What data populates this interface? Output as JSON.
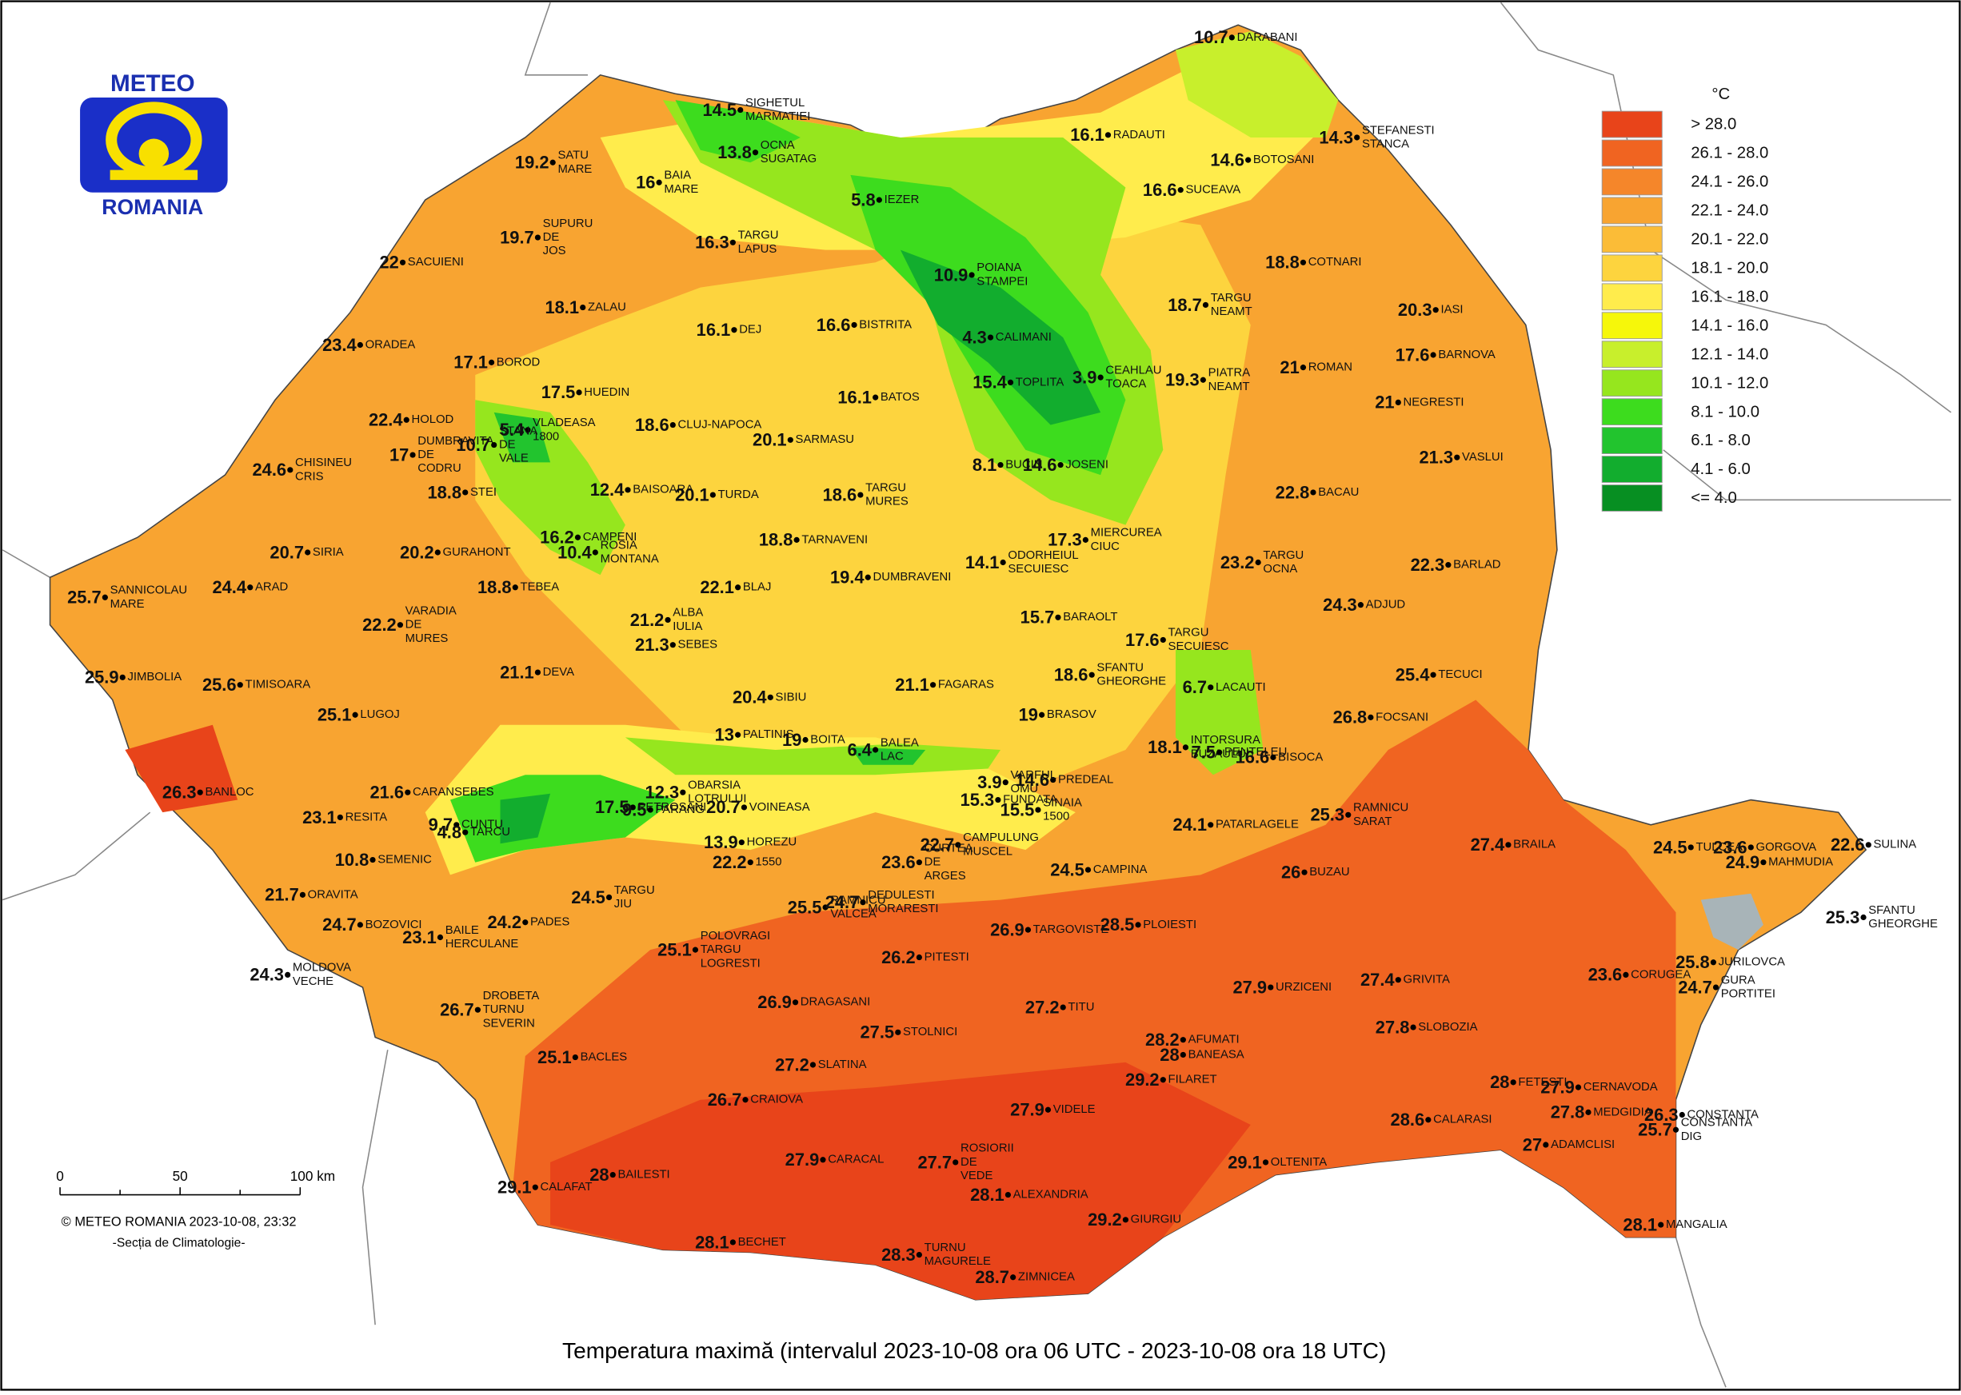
{
  "logo": {
    "top": "METEO",
    "bottom": "ROMANIA"
  },
  "legend": {
    "unit": "°C",
    "items": [
      {
        "label": "> 28.0",
        "color": "#e8441a"
      },
      {
        "label": "26.1 - 28.0",
        "color": "#f06421"
      },
      {
        "label": "24.1 - 26.0",
        "color": "#f5862a"
      },
      {
        "label": "22.1 - 24.0",
        "color": "#f8a431"
      },
      {
        "label": "20.1 - 22.0",
        "color": "#fbbc37"
      },
      {
        "label": "18.1 - 20.0",
        "color": "#fdd43e"
      },
      {
        "label": "16.1 - 18.0",
        "color": "#ffec4c"
      },
      {
        "label": "14.1 - 16.0",
        "color": "#f6f70a"
      },
      {
        "label": "12.1 - 14.0",
        "color": "#c8ef2c"
      },
      {
        "label": "10.1 - 12.0",
        "color": "#96e61e"
      },
      {
        "label": "8.1 - 10.0",
        "color": "#3ddc1e"
      },
      {
        "label": "6.1 - 8.0",
        "color": "#22c42e"
      },
      {
        "label": "4.1 - 6.0",
        "color": "#12ad2e"
      },
      {
        "label": "<= 4.0",
        "color": "#078f22"
      }
    ]
  },
  "scale_bar": {
    "ticks": [
      "0",
      "50",
      "100 km"
    ]
  },
  "credit": "© METEO ROMANIA 2023-10-08, 23:32",
  "department": "-Secția de Climatologie-",
  "title": "Temperatura maximă (intervalul 2023-10-08 ora 06 UTC - 2023-10-08 ora 18 UTC)",
  "stations": [
    {
      "value": 10.7,
      "name": [
        "DARABANI"
      ]
    },
    {
      "value": 14.5,
      "name": [
        "SIGHETUL",
        "MARMATIEI"
      ]
    },
    {
      "value": 13.8,
      "name": [
        "OCNA",
        "SUGATAG"
      ]
    },
    {
      "value": 19.2,
      "name": [
        "SATU",
        "MARE"
      ]
    },
    {
      "value": 16,
      "name": [
        "BAIA",
        "MARE"
      ]
    },
    {
      "value": 16.1,
      "name": [
        "RADAUTI"
      ]
    },
    {
      "value": 14.6,
      "name": [
        "BOTOSANI"
      ]
    },
    {
      "value": 14.3,
      "name": [
        "STEFANESTI",
        "STANCA"
      ]
    },
    {
      "value": 5.8,
      "name": [
        "IEZER"
      ]
    },
    {
      "value": 16.6,
      "name": [
        "SUCEAVA"
      ]
    },
    {
      "value": 16.3,
      "name": [
        "TARGU",
        "LAPUS"
      ]
    },
    {
      "value": 19.7,
      "name": [
        "SUPURU",
        "DE",
        "JOS"
      ]
    },
    {
      "value": 22,
      "name": [
        "SACUIENI"
      ]
    },
    {
      "value": 10.9,
      "name": [
        "POIANA",
        "STAMPEI"
      ]
    },
    {
      "value": 18.8,
      "name": [
        "COTNARI"
      ]
    },
    {
      "value": 18.1,
      "name": [
        "ZALAU"
      ]
    },
    {
      "value": 18.7,
      "name": [
        "TARGU",
        "NEAMT"
      ]
    },
    {
      "value": 20.3,
      "name": [
        "IASI"
      ]
    },
    {
      "value": 16.1,
      "name": [
        "DEJ"
      ]
    },
    {
      "value": 16.6,
      "name": [
        "BISTRITA"
      ]
    },
    {
      "value": 4.3,
      "name": [
        "CALIMANI"
      ]
    },
    {
      "value": 23.4,
      "name": [
        "ORADEA"
      ]
    },
    {
      "value": 17.1,
      "name": [
        "BOROD"
      ]
    },
    {
      "value": 3.9,
      "name": [
        "CEAHLAU",
        "TOACA"
      ]
    },
    {
      "value": 19.3,
      "name": [
        "PIATRA",
        "NEAMT"
      ]
    },
    {
      "value": 21,
      "name": [
        "ROMAN"
      ]
    },
    {
      "value": 17.6,
      "name": [
        "BARNOVA"
      ]
    },
    {
      "value": 17.5,
      "name": [
        "HUEDIN"
      ]
    },
    {
      "value": 5.4,
      "name": [
        "VLADEASA",
        "1800"
      ]
    },
    {
      "value": 15.4,
      "name": [
        "TOPLITA"
      ]
    },
    {
      "value": 16.1,
      "name": [
        "BATOS"
      ]
    },
    {
      "value": 21,
      "name": [
        "NEGRESTI"
      ]
    },
    {
      "value": 22.4,
      "name": [
        "HOLOD"
      ]
    },
    {
      "value": 18.6,
      "name": [
        "CLUJ-NAPOCA"
      ]
    },
    {
      "value": 17,
      "name": [
        "DUMBRAVITA",
        "DE",
        "CODRU"
      ]
    },
    {
      "value": 10.7,
      "name": [
        "STANA",
        "DE",
        "VALE"
      ]
    },
    {
      "value": 20.1,
      "name": [
        "SARMASU"
      ]
    },
    {
      "value": 8.1,
      "name": [
        "BUCIN"
      ]
    },
    {
      "value": 14.6,
      "name": [
        "JOSENI"
      ]
    },
    {
      "value": 21.3,
      "name": [
        "VASLUI"
      ]
    },
    {
      "value": 24.6,
      "name": [
        "CHISINEU",
        "CRIS"
      ]
    },
    {
      "value": 18.8,
      "name": [
        "STEI"
      ]
    },
    {
      "value": 12.4,
      "name": [
        "BAISOARA"
      ]
    },
    {
      "value": 20.1,
      "name": [
        "TURDA"
      ]
    },
    {
      "value": 18.6,
      "name": [
        "TARGU",
        "MURES"
      ]
    },
    {
      "value": 22.8,
      "name": [
        "BACAU"
      ]
    },
    {
      "value": 16.2,
      "name": [
        "CAMPENI"
      ]
    },
    {
      "value": 10.4,
      "name": [
        "ROSIA",
        "MONTANA"
      ]
    },
    {
      "value": 20.7,
      "name": [
        "SIRIA"
      ]
    },
    {
      "value": 20.2,
      "name": [
        "GURAHONT"
      ]
    },
    {
      "value": 18.8,
      "name": [
        "TARNAVENI"
      ]
    },
    {
      "value": 14.1,
      "name": [
        "ODORHEIUL",
        "SECUIESC"
      ]
    },
    {
      "value": 17.3,
      "name": [
        "MIERCUREA",
        "CIUC"
      ]
    },
    {
      "value": 23.2,
      "name": [
        "TARGU",
        "OCNA"
      ]
    },
    {
      "value": 22.3,
      "name": [
        "BARLAD"
      ]
    },
    {
      "value": 25.7,
      "name": [
        "SANNICOLAU",
        "MARE"
      ]
    },
    {
      "value": 24.4,
      "name": [
        "ARAD"
      ]
    },
    {
      "value": 18.8,
      "name": [
        "TEBEA"
      ]
    },
    {
      "value": 19.4,
      "name": [
        "DUMBRAVENI"
      ]
    },
    {
      "value": 22.1,
      "name": [
        "BLAJ"
      ]
    },
    {
      "value": 22.2,
      "name": [
        "VARADIA",
        "DE",
        "MURES"
      ]
    },
    {
      "value": 24.3,
      "name": [
        "ADJUD"
      ]
    },
    {
      "value": 21.2,
      "name": [
        "ALBA",
        "IULIA"
      ]
    },
    {
      "value": 15.7,
      "name": [
        "BARAOLT"
      ]
    },
    {
      "value": 17.6,
      "name": [
        "TARGU",
        "SECUIESC"
      ]
    },
    {
      "value": 21.3,
      "name": [
        "SEBES"
      ]
    },
    {
      "value": 18.6,
      "name": [
        "SFANTU",
        "GHEORGHE"
      ]
    },
    {
      "value": 21.1,
      "name": [
        "DEVA"
      ]
    },
    {
      "value": 25.9,
      "name": [
        "JIMBOLIA"
      ]
    },
    {
      "value": 25.6,
      "name": [
        "TIMISOARA"
      ]
    },
    {
      "value": 25.4,
      "name": [
        "TECUCI"
      ]
    },
    {
      "value": 6.7,
      "name": [
        "LACAUTI"
      ]
    },
    {
      "value": 20.4,
      "name": [
        "SIBIU"
      ]
    },
    {
      "value": 21.1,
      "name": [
        "FAGARAS"
      ]
    },
    {
      "value": 19,
      "name": [
        "BRASOV"
      ]
    },
    {
      "value": 26.8,
      "name": [
        "FOCSANI"
      ]
    },
    {
      "value": 25.1,
      "name": [
        "LUGOJ"
      ]
    },
    {
      "value": 13,
      "name": [
        "PALTINIS"
      ]
    },
    {
      "value": 19,
      "name": [
        "BOITA"
      ]
    },
    {
      "value": 6.4,
      "name": [
        "BALEA",
        "LAC"
      ]
    },
    {
      "value": 18.1,
      "name": [
        "INTORSURA",
        "BUZAULUI"
      ]
    },
    {
      "value": 7.5,
      "name": [
        "PENTELEU"
      ]
    },
    {
      "value": 16.6,
      "name": [
        "BISOCA"
      ]
    },
    {
      "value": 26.3,
      "name": [
        "BANLOC"
      ]
    },
    {
      "value": 21.6,
      "name": [
        "CARANSEBES"
      ]
    },
    {
      "value": 14.6,
      "name": [
        "PREDEAL"
      ]
    },
    {
      "value": 3.9,
      "name": [
        "VARFUL",
        "OMU"
      ]
    },
    {
      "value": 12.3,
      "name": [
        "OBARSIA",
        "LOTRULUI"
      ]
    },
    {
      "value": 17.5,
      "name": [
        "PETROSANI"
      ]
    },
    {
      "value": 9.5,
      "name": [
        "PARANG"
      ]
    },
    {
      "value": 20.7,
      "name": [
        "VOINEASA"
      ]
    },
    {
      "value": 15.3,
      "name": [
        "FUNDATA"
      ]
    },
    {
      "value": 15.5,
      "name": [
        "SINAIA",
        "1500"
      ]
    },
    {
      "value": 23.1,
      "name": [
        "RESITA"
      ]
    },
    {
      "value": 9.7,
      "name": [
        "CUNTU"
      ]
    },
    {
      "value": 4.8,
      "name": [
        "TARCU"
      ]
    },
    {
      "value": 24.1,
      "name": [
        "PATARLAGELE"
      ]
    },
    {
      "value": 25.3,
      "name": [
        "RAMNICU",
        "SARAT"
      ]
    },
    {
      "value": 22.7,
      "name": [
        "CAMPULUNG",
        "MUSCEL"
      ]
    },
    {
      "value": 13.9,
      "name": [
        "HOREZU"
      ]
    },
    {
      "value": 22.2,
      "name": [
        "1550"
      ]
    },
    {
      "value": 10.8,
      "name": [
        "SEMENIC"
      ]
    },
    {
      "value": 24.5,
      "name": [
        "CAMPINA"
      ]
    },
    {
      "value": 26,
      "name": [
        "BUZAU"
      ]
    },
    {
      "value": 27.4,
      "name": [
        "BRAILA"
      ]
    },
    {
      "value": 24.5,
      "name": [
        "TULCEA"
      ]
    },
    {
      "value": 23.6,
      "name": [
        "GORGOVA"
      ]
    },
    {
      "value": 22.6,
      "name": [
        "SULINA"
      ]
    },
    {
      "value": 24.9,
      "name": [
        "MAHMUDIA"
      ]
    },
    {
      "value": 21.7,
      "name": [
        "ORAVITA"
      ]
    },
    {
      "value": 24.5,
      "name": [
        "TARGU",
        "JIU"
      ]
    },
    {
      "value": 24.2,
      "name": [
        "PADES"
      ]
    },
    {
      "value": 25.5,
      "name": [
        "RAMNICU",
        "VALCEA"
      ]
    },
    {
      "value": 24.7,
      "name": [
        "DEDULESTI",
        "MORARESTI"
      ]
    },
    {
      "value": 23.6,
      "name": [
        "CURTEA",
        "DE",
        "ARGES"
      ]
    },
    {
      "value": 24.7,
      "name": [
        "BOZOVICI"
      ]
    },
    {
      "value": 23.1,
      "name": [
        "BAILE",
        "HERCULANE"
      ]
    },
    {
      "value": 26.9,
      "name": [
        "TARGOVISTE"
      ]
    },
    {
      "value": 28.5,
      "name": [
        "PLOIESTI"
      ]
    },
    {
      "value": 25.3,
      "name": [
        "SFANTU",
        "GHEORGHE"
      ]
    },
    {
      "value": 25.1,
      "name": [
        "POLOVRAGI",
        "TARGU",
        "LOGRESTI"
      ]
    },
    {
      "value": 26.2,
      "name": [
        "PITESTI"
      ]
    },
    {
      "value": 24.3,
      "name": [
        "MOLDOVA",
        "VECHE"
      ]
    },
    {
      "value": 27.9,
      "name": [
        "URZICENI"
      ]
    },
    {
      "value": 27.4,
      "name": [
        "GRIVITA"
      ]
    },
    {
      "value": 25.8,
      "name": [
        "JURILOVCA"
      ]
    },
    {
      "value": 24.7,
      "name": [
        "GURA",
        "PORTITEI"
      ]
    },
    {
      "value": 23.6,
      "name": [
        "CORUGEA"
      ]
    },
    {
      "value": 26.7,
      "name": [
        "DROBETA",
        "TURNU",
        "SEVERIN"
      ]
    },
    {
      "value": 26.9,
      "name": [
        "DRAGASANI"
      ]
    },
    {
      "value": 27.2,
      "name": [
        "TITU"
      ]
    },
    {
      "value": 27.5,
      "name": [
        "STOLNICI"
      ]
    },
    {
      "value": 27.8,
      "name": [
        "SLOBOZIA"
      ]
    },
    {
      "value": 28.2,
      "name": [
        "AFUMATI"
      ]
    },
    {
      "value": 28,
      "name": [
        "BANEASA"
      ]
    },
    {
      "value": 25.1,
      "name": [
        "BACLES"
      ]
    },
    {
      "value": 27.2,
      "name": [
        "SLATINA"
      ]
    },
    {
      "value": 29.2,
      "name": [
        "FILARET"
      ]
    },
    {
      "value": 28,
      "name": [
        "FETESTI"
      ]
    },
    {
      "value": 27.9,
      "name": [
        "CERNAVODA"
      ]
    },
    {
      "value": 26.7,
      "name": [
        "CRAIOVA"
      ]
    },
    {
      "value": 27.9,
      "name": [
        "VIDELE"
      ]
    },
    {
      "value": 27.8,
      "name": [
        "MEDGIDIA"
      ]
    },
    {
      "value": 26.3,
      "name": [
        "CONSTANTA"
      ]
    },
    {
      "value": 25.7,
      "name": [
        "CONSTANTA",
        "DIG"
      ]
    },
    {
      "value": 28.6,
      "name": [
        "CALARASI"
      ]
    },
    {
      "value": 27,
      "name": [
        "ADAMCLISI"
      ]
    },
    {
      "value": 27.9,
      "name": [
        "CARACAL"
      ]
    },
    {
      "value": 27.7,
      "name": [
        "ROSIORII",
        "DE",
        "VEDE"
      ]
    },
    {
      "value": 29.1,
      "name": [
        "OLTENITA"
      ]
    },
    {
      "value": 29.1,
      "name": [
        "CALAFAT"
      ]
    },
    {
      "value": 28,
      "name": [
        "BAILESTI"
      ]
    },
    {
      "value": 28.1,
      "name": [
        "ALEXANDRIA"
      ]
    },
    {
      "value": 29.2,
      "name": [
        "GIURGIU"
      ]
    },
    {
      "value": 28.1,
      "name": [
        "MANGALIA"
      ]
    },
    {
      "value": 28.1,
      "name": [
        "BECHET"
      ]
    },
    {
      "value": 28.3,
      "name": [
        "TURNU",
        "MAGURELE"
      ]
    },
    {
      "value": 28.7,
      "name": [
        "ZIMNICEA"
      ]
    }
  ]
}
